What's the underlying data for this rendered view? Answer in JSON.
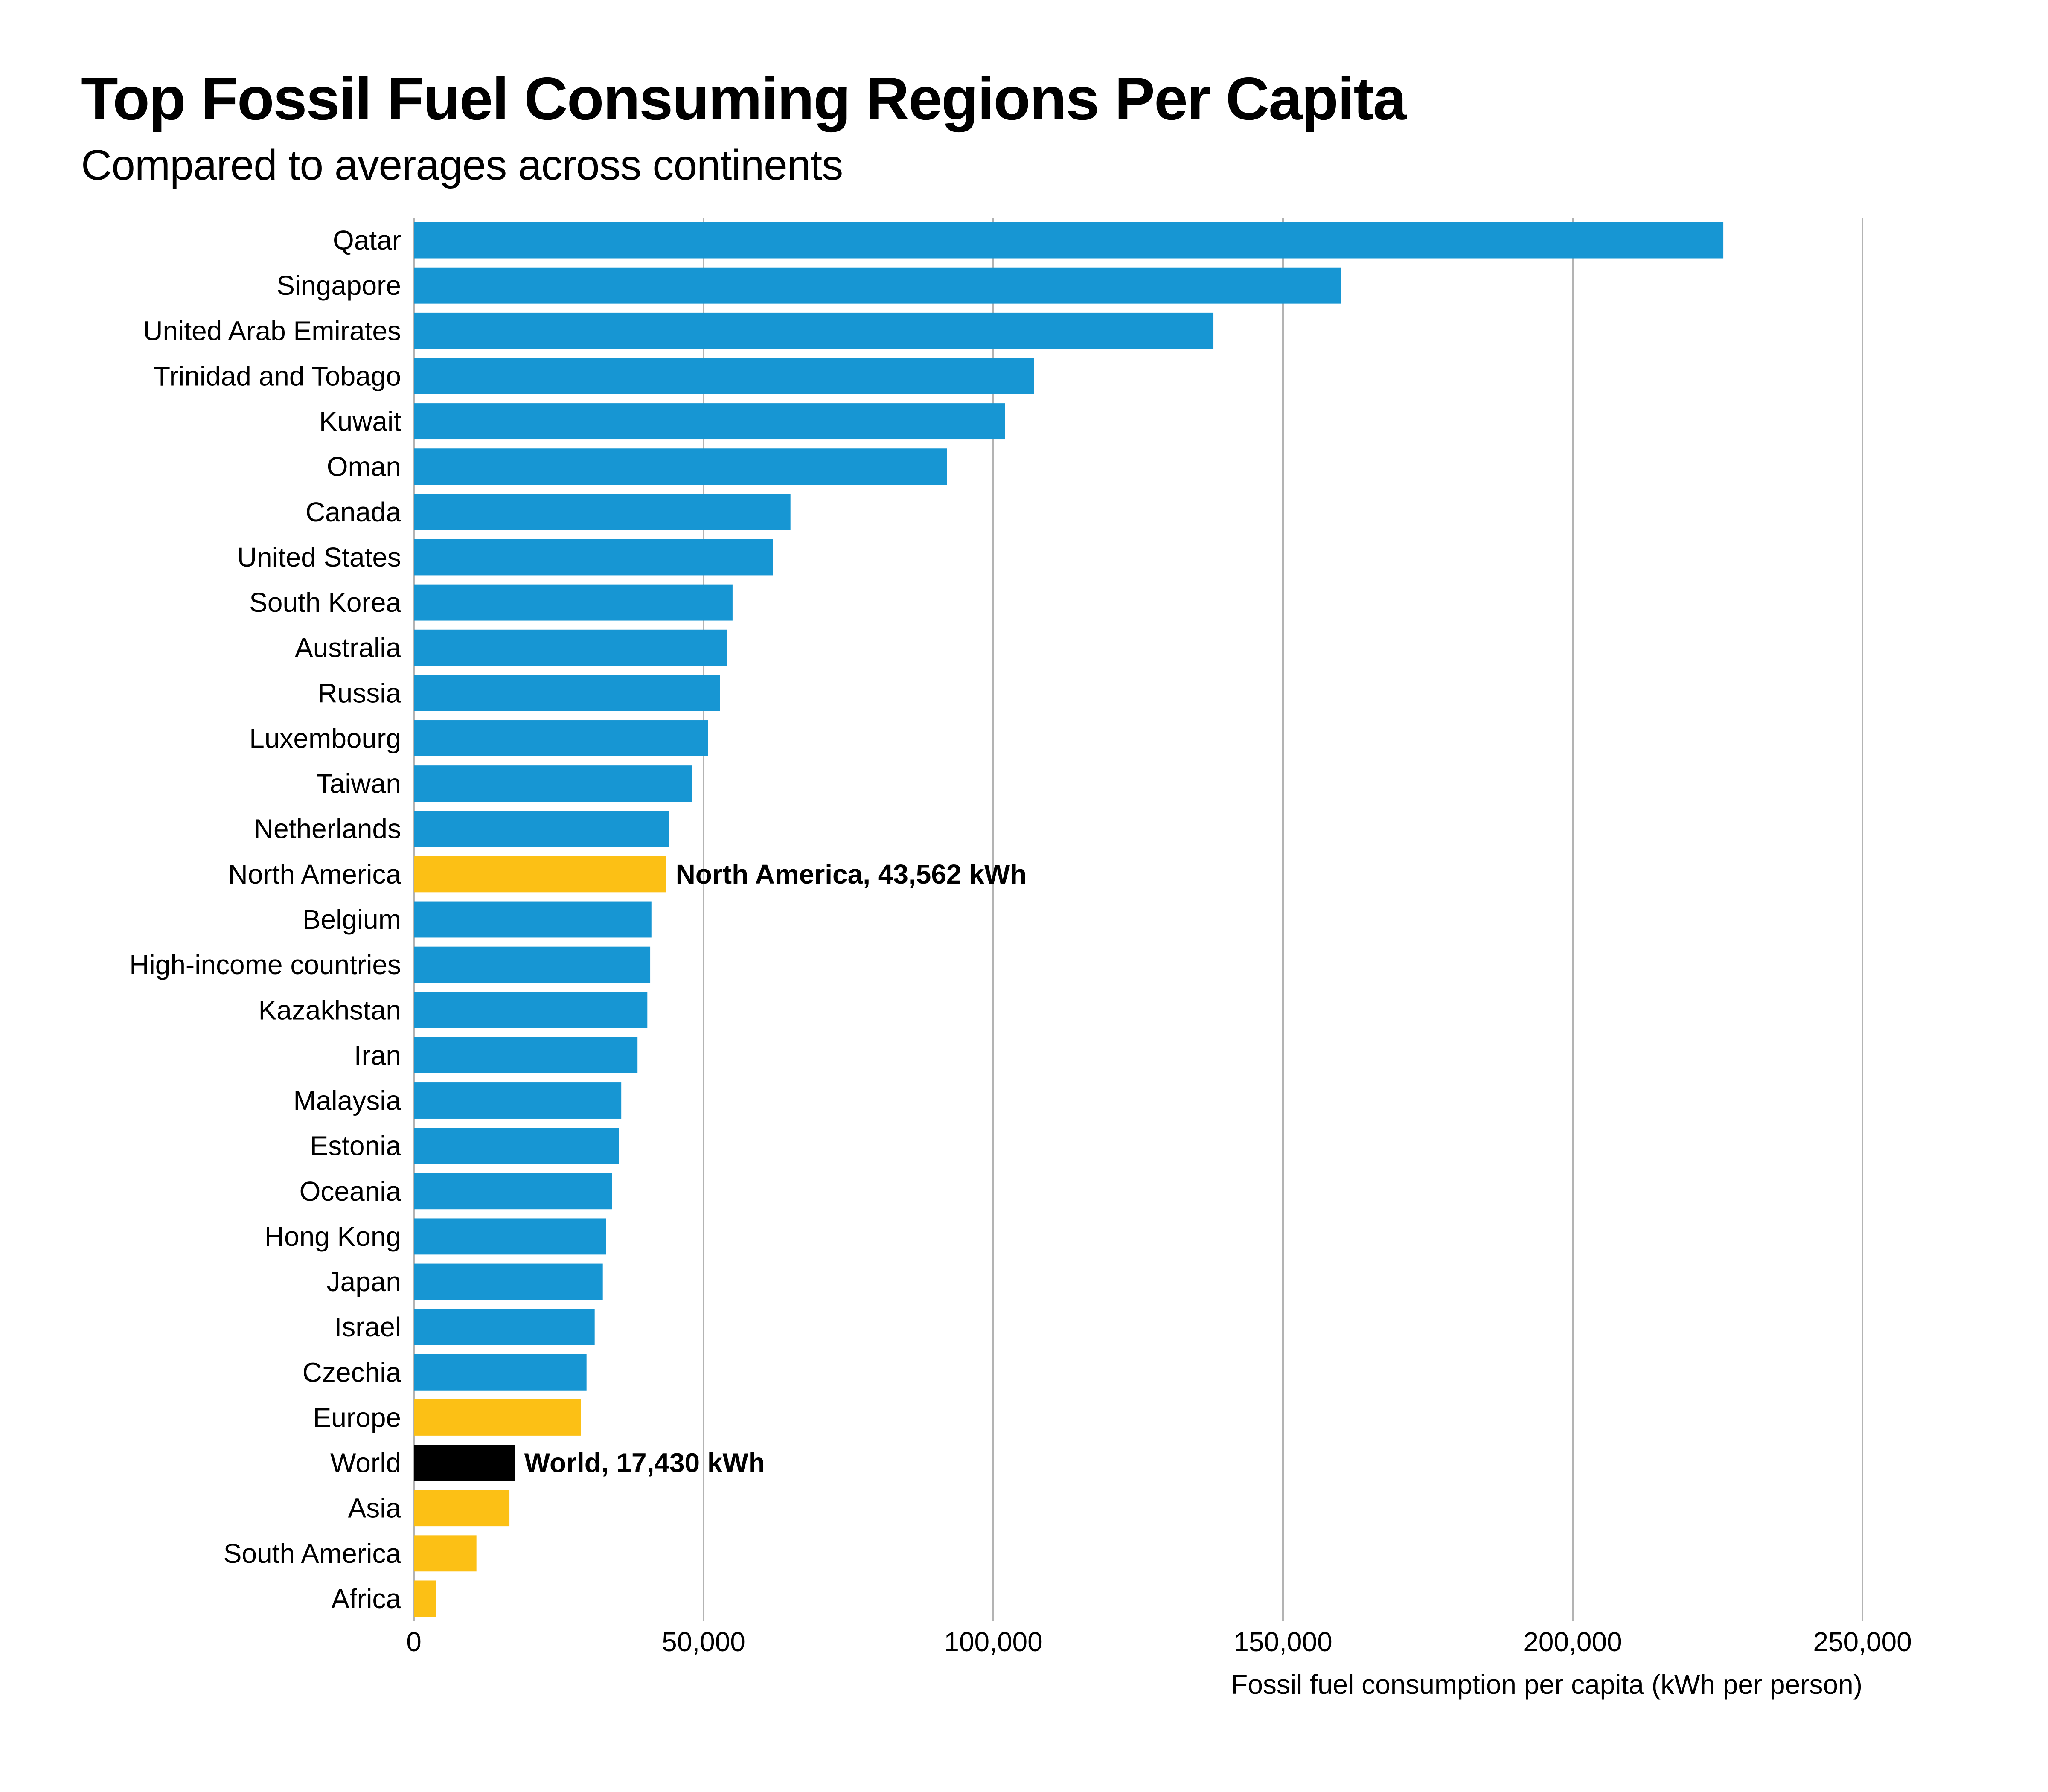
{
  "chart_data": {
    "type": "bar",
    "orientation": "horizontal",
    "title": "Top Fossil Fuel Consuming Regions Per Capita",
    "subtitle": "Compared to averages across continents",
    "xlabel": "Fossil fuel consumption per capita (kWh per person)",
    "ylabel": "",
    "xlim": [
      0,
      250000
    ],
    "xticks": [
      0,
      50000,
      100000,
      150000,
      200000,
      250000
    ],
    "xtick_labels": [
      "0",
      "50,000",
      "100,000",
      "150,000",
      "200,000",
      "250,000"
    ],
    "grid": "vertical",
    "colors": {
      "country": "#1796d3",
      "continent": "#fcc015",
      "world": "#000000"
    },
    "bars": [
      {
        "label": "Qatar",
        "value": 226000,
        "group": "country"
      },
      {
        "label": "Singapore",
        "value": 160000,
        "group": "country"
      },
      {
        "label": "United Arab Emirates",
        "value": 138000,
        "group": "country"
      },
      {
        "label": "Trinidad and Tobago",
        "value": 107000,
        "group": "country"
      },
      {
        "label": "Kuwait",
        "value": 102000,
        "group": "country"
      },
      {
        "label": "Oman",
        "value": 92000,
        "group": "country"
      },
      {
        "label": "Canada",
        "value": 65000,
        "group": "country"
      },
      {
        "label": "United States",
        "value": 62000,
        "group": "country"
      },
      {
        "label": "South Korea",
        "value": 55000,
        "group": "country"
      },
      {
        "label": "Australia",
        "value": 54000,
        "group": "country"
      },
      {
        "label": "Russia",
        "value": 52800,
        "group": "country"
      },
      {
        "label": "Luxembourg",
        "value": 50800,
        "group": "country"
      },
      {
        "label": "Taiwan",
        "value": 48000,
        "group": "country"
      },
      {
        "label": "Netherlands",
        "value": 44000,
        "group": "country"
      },
      {
        "label": "North America",
        "value": 43562,
        "group": "continent",
        "annotation": "North America, 43,562 kWh"
      },
      {
        "label": "Belgium",
        "value": 41000,
        "group": "country"
      },
      {
        "label": "High-income countries",
        "value": 40800,
        "group": "country"
      },
      {
        "label": "Kazakhstan",
        "value": 40300,
        "group": "country"
      },
      {
        "label": "Iran",
        "value": 38600,
        "group": "country"
      },
      {
        "label": "Malaysia",
        "value": 35800,
        "group": "country"
      },
      {
        "label": "Estonia",
        "value": 35400,
        "group": "country"
      },
      {
        "label": "Oceania",
        "value": 34200,
        "group": "country"
      },
      {
        "label": "Hong Kong",
        "value": 33200,
        "group": "country"
      },
      {
        "label": "Japan",
        "value": 32600,
        "group": "country"
      },
      {
        "label": "Israel",
        "value": 31200,
        "group": "country"
      },
      {
        "label": "Czechia",
        "value": 29800,
        "group": "country"
      },
      {
        "label": "Europe",
        "value": 28800,
        "group": "continent"
      },
      {
        "label": "World",
        "value": 17430,
        "group": "world",
        "annotation": "World, 17,430 kWh"
      },
      {
        "label": "Asia",
        "value": 16500,
        "group": "continent"
      },
      {
        "label": "South America",
        "value": 10800,
        "group": "continent"
      },
      {
        "label": "Africa",
        "value": 3800,
        "group": "continent"
      }
    ]
  }
}
